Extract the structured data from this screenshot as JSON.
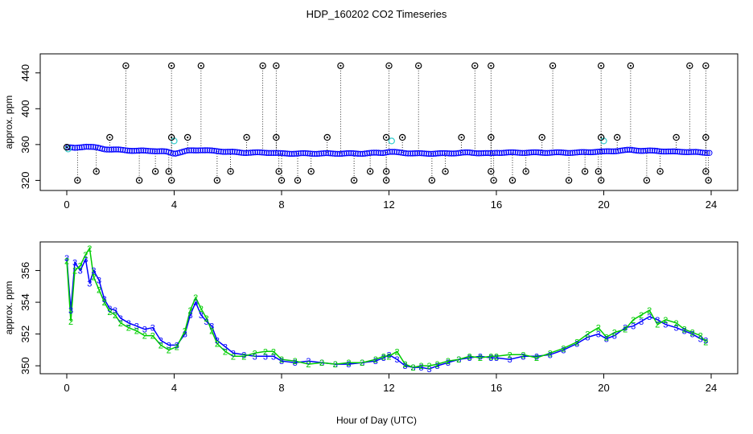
{
  "title": "HDP_160202  CO2 Timeseries",
  "xlabel": "Hour of Day (UTC)",
  "colors": {
    "black": "#000000",
    "blue": "#0000ff",
    "cyan": "#33cccc",
    "green": "#00cc00"
  },
  "chart_data": [
    {
      "type": "scatter",
      "name": "top-panel",
      "ylabel": "approx. ppm",
      "xlim": [
        0,
        24
      ],
      "ylim": [
        315,
        455
      ],
      "xticks": [
        "0",
        "4",
        "8",
        "12",
        "16",
        "20",
        "24"
      ],
      "yticks": [
        "320",
        "360",
        "400",
        "440"
      ],
      "baseline": {
        "x": [
          0.0,
          0.3,
          0.7,
          1.0,
          1.4,
          2.0,
          2.6,
          3.2,
          3.7,
          4.0,
          4.5,
          5.0,
          5.4,
          6.0,
          6.5,
          7.0,
          7.6,
          8.0,
          9.0,
          10.0,
          11.0,
          11.8,
          12.0,
          12.4,
          13.0,
          14.0,
          15.0,
          15.8,
          16.0,
          17.0,
          18.0,
          19.0,
          19.7,
          20.0,
          20.5,
          21.0,
          21.5,
          22.0,
          22.5,
          23.0,
          23.7
        ],
        "value": [
          357,
          356,
          358,
          357,
          355,
          354,
          353,
          353,
          352,
          350,
          353,
          354,
          353,
          352,
          351,
          351,
          351,
          350,
          350,
          350,
          350,
          351,
          352,
          351,
          350,
          350,
          351,
          350,
          351,
          351,
          351,
          351,
          352,
          352,
          353,
          354,
          353,
          353,
          352,
          352,
          351
        ]
      },
      "cyan_points": [
        {
          "x": 0.05,
          "y": 355
        },
        {
          "x": 4.0,
          "y": 364
        },
        {
          "x": 12.1,
          "y": 364
        },
        {
          "x": 20.0,
          "y": 364
        }
      ],
      "high_spikes": [
        2.2,
        3.9,
        5.0,
        7.3,
        7.8,
        10.2,
        12.0,
        13.1,
        15.2,
        15.8,
        18.1,
        19.9,
        21.0,
        23.2,
        23.8
      ],
      "high_value": 448,
      "mid_spikes": [
        1.6,
        3.9,
        4.5,
        6.7,
        7.8,
        9.7,
        11.9,
        12.5,
        14.7,
        15.8,
        17.7,
        19.9,
        20.5,
        22.7,
        23.8
      ],
      "mid_value": 368,
      "low_spikes": [
        0.4,
        1.1,
        2.7,
        3.3,
        3.8,
        3.9,
        5.6,
        6.1,
        7.9,
        8.0,
        8.6,
        9.1,
        10.7,
        11.3,
        11.9,
        11.9,
        13.6,
        14.1,
        15.8,
        15.9,
        16.6,
        17.1,
        18.7,
        19.3,
        19.8,
        19.9,
        21.6,
        22.1,
        23.8,
        23.9
      ],
      "low_pair": [
        [
          0.4,
          320
        ],
        [
          1.1,
          330
        ],
        [
          2.7,
          320
        ],
        [
          3.3,
          330
        ],
        [
          3.8,
          330
        ],
        [
          3.9,
          320
        ],
        [
          5.6,
          320
        ],
        [
          6.1,
          330
        ],
        [
          7.9,
          330
        ],
        [
          8.0,
          320
        ],
        [
          8.6,
          320
        ],
        [
          9.1,
          330
        ],
        [
          10.7,
          320
        ],
        [
          11.3,
          330
        ],
        [
          11.9,
          330
        ],
        [
          11.9,
          320
        ],
        [
          13.6,
          320
        ],
        [
          14.1,
          330
        ],
        [
          15.8,
          330
        ],
        [
          15.9,
          320
        ],
        [
          16.6,
          320
        ],
        [
          17.1,
          330
        ],
        [
          18.7,
          320
        ],
        [
          19.3,
          330
        ],
        [
          19.8,
          330
        ],
        [
          19.9,
          320
        ],
        [
          21.6,
          320
        ],
        [
          22.1,
          330
        ],
        [
          23.8,
          330
        ],
        [
          23.9,
          320
        ]
      ]
    },
    {
      "type": "line",
      "name": "bottom-panel",
      "ylabel": "approx. ppm",
      "xlim": [
        0,
        24
      ],
      "ylim": [
        349.5,
        357.8
      ],
      "xticks": [
        "0",
        "4",
        "8",
        "12",
        "16",
        "20",
        "24"
      ],
      "yticks": [
        "350",
        "352",
        "354",
        "356"
      ],
      "series": [
        {
          "name": "3",
          "marker": "3",
          "color": "#0000ff",
          "x": [
            0.0,
            0.15,
            0.3,
            0.5,
            0.7,
            0.85,
            1.0,
            1.2,
            1.4,
            1.6,
            1.8,
            2.0,
            2.3,
            2.6,
            2.9,
            3.2,
            3.5,
            3.8,
            4.1,
            4.4,
            4.6,
            4.8,
            5.0,
            5.2,
            5.4,
            5.6,
            5.9,
            6.2,
            6.6,
            7.0,
            7.4,
            7.7,
            8.0,
            8.5,
            9.0,
            9.5,
            10.0,
            10.5,
            11.0,
            11.5,
            11.8,
            12.0,
            12.3,
            12.6,
            12.9,
            13.2,
            13.5,
            13.8,
            14.2,
            14.6,
            15.0,
            15.4,
            15.8,
            16.0,
            16.5,
            17.0,
            17.5,
            18.0,
            18.5,
            19.0,
            19.4,
            19.8,
            20.1,
            20.4,
            20.8,
            21.1,
            21.4,
            21.7,
            22.0,
            22.3,
            22.7,
            23.0,
            23.3,
            23.6,
            23.8
          ],
          "values": [
            356.8,
            353.5,
            356.5,
            356.0,
            356.7,
            355.2,
            356.0,
            355.4,
            354.2,
            353.6,
            353.5,
            353.0,
            352.7,
            352.5,
            352.3,
            352.4,
            351.6,
            351.3,
            351.3,
            352.0,
            353.2,
            354.0,
            353.2,
            352.8,
            352.5,
            351.6,
            351.2,
            350.8,
            350.7,
            350.6,
            350.6,
            350.6,
            350.3,
            350.2,
            350.3,
            350.2,
            350.1,
            350.1,
            350.2,
            350.3,
            350.5,
            350.7,
            350.4,
            350.0,
            349.9,
            349.9,
            349.8,
            350.0,
            350.2,
            350.4,
            350.5,
            350.6,
            350.5,
            350.5,
            350.4,
            350.6,
            350.6,
            350.7,
            351.0,
            351.4,
            351.8,
            352.0,
            351.7,
            351.9,
            352.4,
            352.5,
            352.8,
            353.1,
            352.9,
            352.6,
            352.4,
            352.2,
            352.0,
            351.7,
            351.6
          ]
        },
        {
          "name": "2",
          "marker": "2",
          "color": "#00cc00",
          "x": [
            0.0,
            0.15,
            0.3,
            0.5,
            0.7,
            0.85,
            1.0,
            1.2,
            1.4,
            1.6,
            1.8,
            2.0,
            2.3,
            2.6,
            2.9,
            3.2,
            3.5,
            3.8,
            4.1,
            4.4,
            4.6,
            4.8,
            5.0,
            5.2,
            5.4,
            5.6,
            5.9,
            6.2,
            6.6,
            7.0,
            7.4,
            7.7,
            8.0,
            8.5,
            9.0,
            9.5,
            10.0,
            10.5,
            11.0,
            11.5,
            11.8,
            12.0,
            12.3,
            12.6,
            12.9,
            13.2,
            13.5,
            13.8,
            14.2,
            14.6,
            15.0,
            15.4,
            15.8,
            16.0,
            16.5,
            17.0,
            17.5,
            18.0,
            18.5,
            19.0,
            19.4,
            19.8,
            20.1,
            20.4,
            20.8,
            21.1,
            21.4,
            21.7,
            22.0,
            22.3,
            22.7,
            23.0,
            23.3,
            23.6,
            23.8
          ],
          "values": [
            356.6,
            352.8,
            356.0,
            356.3,
            357.0,
            357.4,
            355.6,
            354.8,
            354.0,
            353.4,
            353.2,
            352.7,
            352.4,
            352.2,
            351.9,
            351.9,
            351.3,
            351.0,
            351.2,
            352.2,
            353.5,
            354.3,
            353.6,
            353.0,
            352.2,
            351.4,
            350.9,
            350.6,
            350.6,
            350.8,
            350.9,
            350.9,
            350.4,
            350.3,
            350.1,
            350.2,
            350.1,
            350.2,
            350.2,
            350.4,
            350.6,
            350.6,
            350.9,
            350.1,
            349.9,
            350.0,
            350.0,
            350.1,
            350.3,
            350.4,
            350.6,
            350.5,
            350.6,
            350.6,
            350.7,
            350.7,
            350.5,
            350.8,
            351.1,
            351.5,
            352.0,
            352.4,
            351.8,
            352.1,
            352.3,
            352.9,
            353.2,
            353.5,
            352.6,
            352.9,
            352.7,
            352.3,
            352.1,
            351.9,
            351.5
          ]
        }
      ]
    }
  ]
}
